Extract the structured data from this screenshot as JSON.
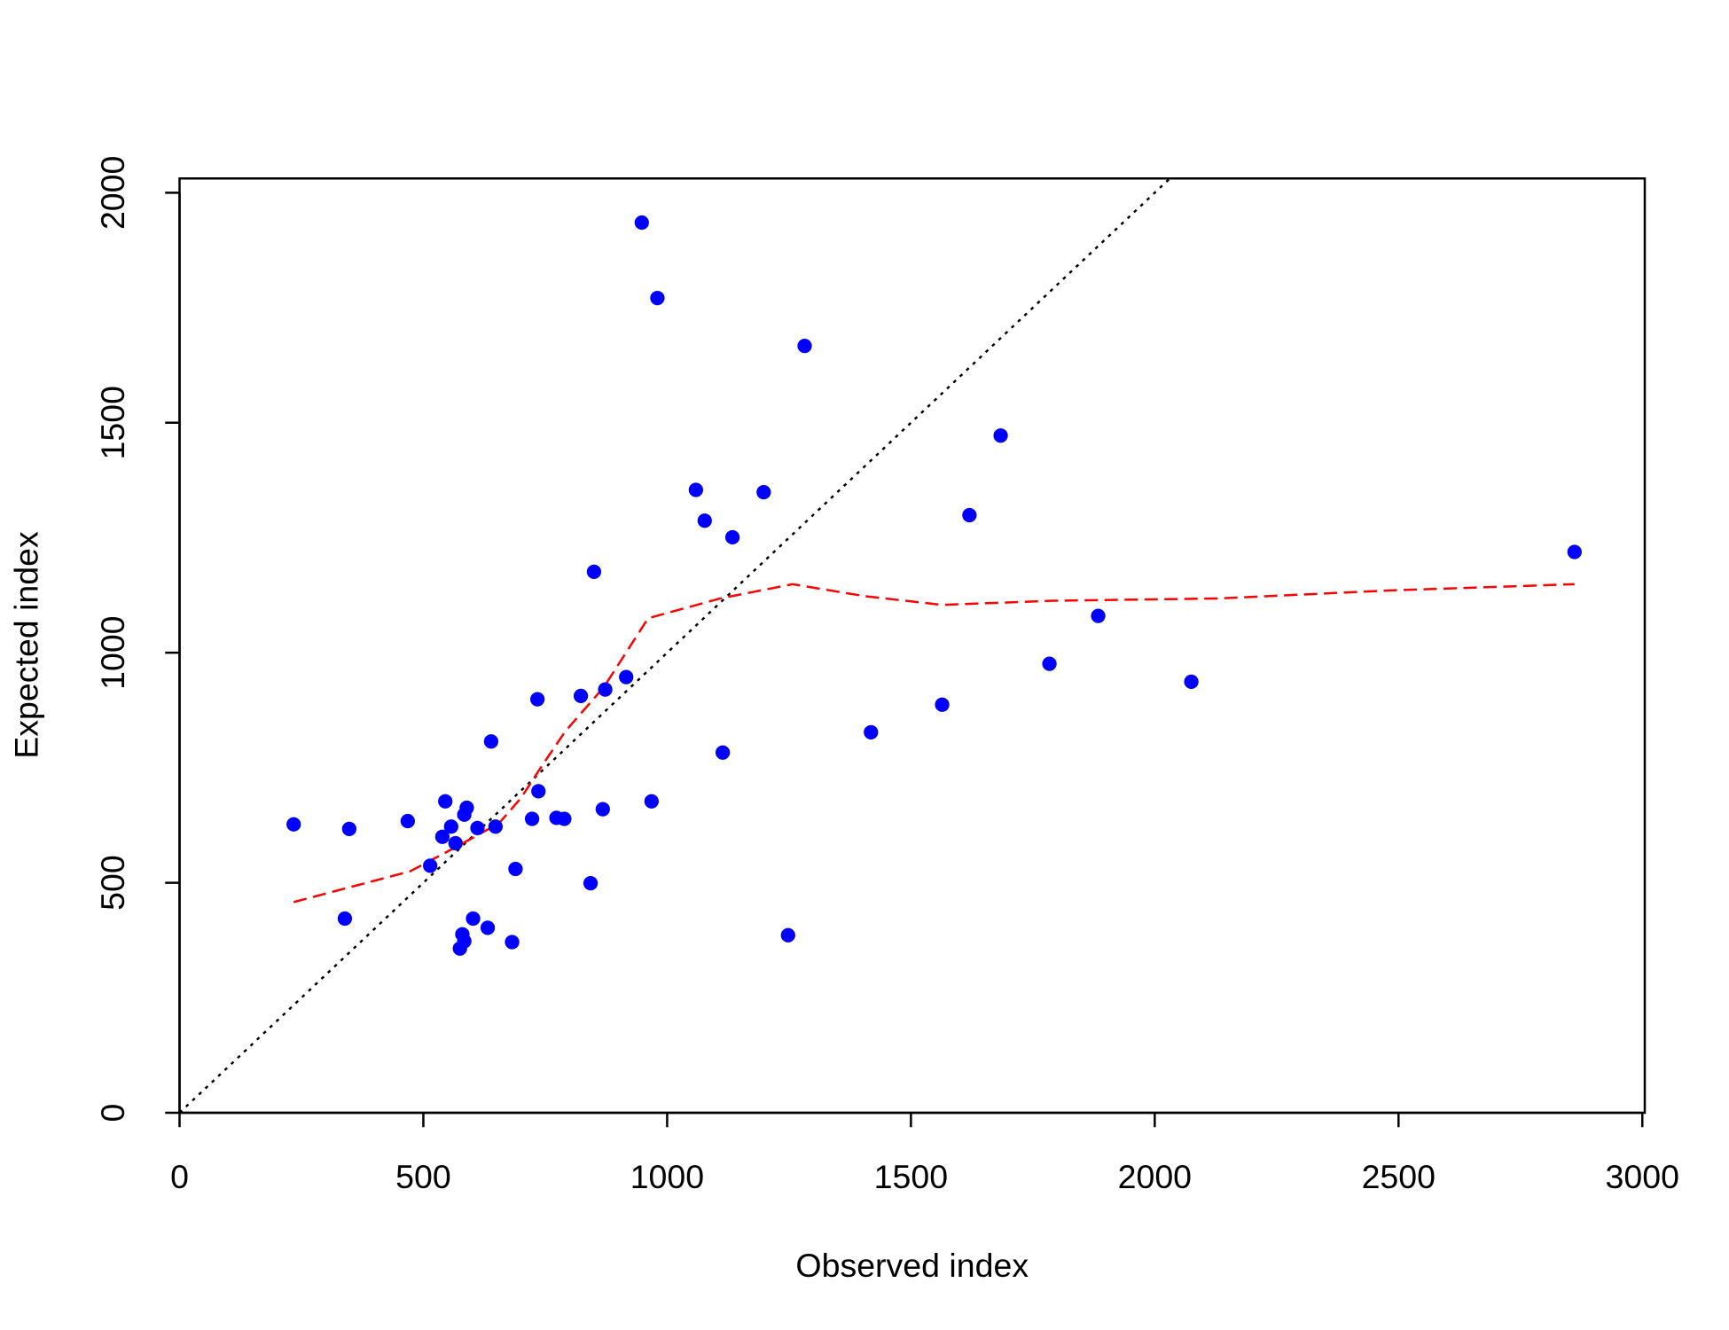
{
  "chart_data": {
    "type": "scatter",
    "x_label": "Observed index",
    "y_label": "Expected index",
    "xlim": [
      0,
      3005
    ],
    "ylim": [
      0,
      2031
    ],
    "xticks": [
      0,
      500,
      1000,
      1500,
      2000,
      2500,
      3000
    ],
    "yticks": [
      0,
      500,
      1000,
      1500,
      2000
    ],
    "series": [
      {
        "color": "#0000ff",
        "x": [
          234,
          339,
          348,
          468,
          514,
          539,
          545,
          557,
          566,
          575,
          580,
          584,
          584,
          589,
          602,
          611,
          632,
          639,
          648,
          682,
          689,
          723,
          734,
          736,
          773,
          789,
          823,
          843,
          850,
          868,
          873,
          916,
          948,
          968,
          980,
          1059,
          1077,
          1114,
          1134,
          1198,
          1248,
          1282,
          1418,
          1564,
          1620,
          1684,
          1784,
          1884,
          2075,
          2861
        ],
        "values": [
          627,
          422,
          617,
          634,
          537,
          600,
          677,
          622,
          586,
          357,
          388,
          373,
          648,
          663,
          422,
          619,
          402,
          807,
          622,
          371,
          530,
          639,
          899,
          699,
          641,
          639,
          906,
          499,
          1176,
          660,
          920,
          947,
          1935,
          677,
          1771,
          1354,
          1287,
          783,
          1251,
          1349,
          386,
          1667,
          827,
          887,
          1299,
          1472,
          976,
          1080,
          937,
          1219
        ]
      }
    ],
    "smooth_line": {
      "color": "#ff0000",
      "x": [
        234,
        473,
        564,
        655,
        700,
        745,
        791,
        870,
        961,
        1109,
        1257,
        1405,
        1564,
        1791,
        2132,
        2473,
        2861
      ],
      "values": [
        458,
        525,
        576,
        629,
        684,
        757,
        829,
        925,
        1075,
        1118,
        1149,
        1123,
        1104,
        1113,
        1118,
        1135,
        1149
      ]
    },
    "reference_line": {
      "color": "#000000",
      "slope": 1,
      "intercept": 0
    }
  }
}
